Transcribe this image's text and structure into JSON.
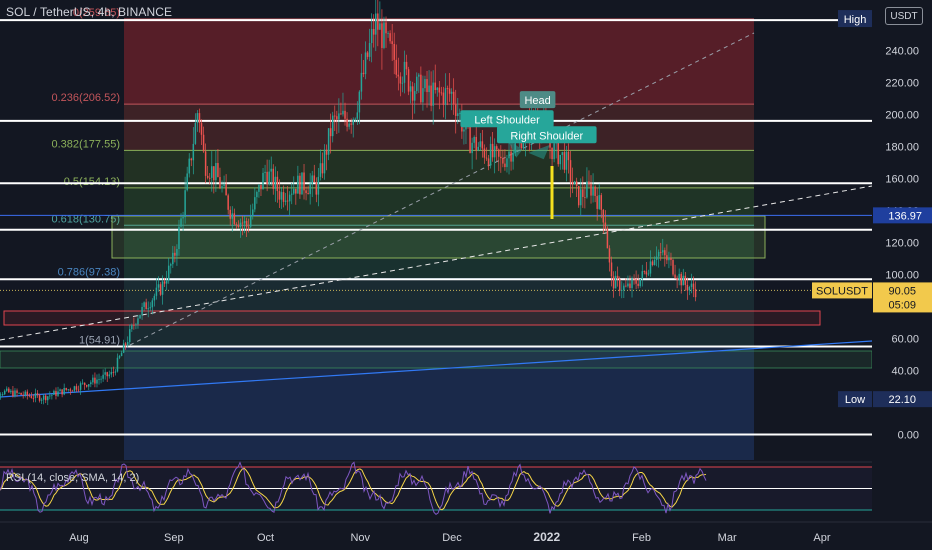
{
  "header": {
    "symbol_line": "SOL / TetherUS, 4h, BINANCE"
  },
  "currency_button": "USDT",
  "rsi": {
    "title": "RSI (14, close, SMA, 14, 2)",
    "price_label": "40.00"
  },
  "colors": {
    "background": "#131722",
    "candle_up": "#26a69a",
    "candle_down": "#ef5350",
    "text": "#d1d4dc",
    "rsi_line": "#7e57c2",
    "rsi_ma": "#f5d547",
    "trend_blue": "#3179f5"
  },
  "chart_data": {
    "type": "candlestick",
    "symbol": "SOL / TetherUS",
    "interval": "4h",
    "exchange": "BINANCE",
    "ylim": [
      -12,
      262
    ],
    "price_axis_ticks": [
      "240.00",
      "220.00",
      "200.00",
      "180.00",
      "160.00",
      "140.00",
      "120.00",
      "100.00",
      "80.00",
      "60.00",
      "40.00",
      "0.00"
    ],
    "time_axis_ticks": [
      "Aug",
      "Sep",
      "Oct",
      "Nov",
      "Dec",
      "2022",
      "Feb",
      "Mar",
      "Apr"
    ],
    "price_path": [
      [
        "2021-07-01",
        28
      ],
      [
        "2021-07-10",
        26
      ],
      [
        "2021-07-20",
        23
      ],
      [
        "2021-07-28",
        28
      ],
      [
        "2021-08-05",
        33
      ],
      [
        "2021-08-12",
        38
      ],
      [
        "2021-08-17",
        60
      ],
      [
        "2021-08-20",
        74
      ],
      [
        "2021-08-28",
        92
      ],
      [
        "2021-09-01",
        110
      ],
      [
        "2021-09-04",
        140
      ],
      [
        "2021-09-09",
        205
      ],
      [
        "2021-09-11",
        170
      ],
      [
        "2021-09-15",
        162
      ],
      [
        "2021-09-20",
        138
      ],
      [
        "2021-09-25",
        130
      ],
      [
        "2021-10-01",
        165
      ],
      [
        "2021-10-06",
        150
      ],
      [
        "2021-10-12",
        157
      ],
      [
        "2021-10-18",
        155
      ],
      [
        "2021-10-23",
        195
      ],
      [
        "2021-10-30",
        200
      ],
      [
        "2021-11-06",
        258
      ],
      [
        "2021-11-12",
        235
      ],
      [
        "2021-11-18",
        218
      ],
      [
        "2021-11-25",
        212
      ],
      [
        "2021-12-01",
        213
      ],
      [
        "2021-12-06",
        185
      ],
      [
        "2021-12-11",
        178
      ],
      [
        "2021-12-17",
        170
      ],
      [
        "2021-12-21",
        180
      ],
      [
        "2021-12-25",
        190
      ],
      [
        "2021-12-29",
        200
      ],
      [
        "2022-01-02",
        180
      ],
      [
        "2022-01-07",
        172
      ],
      [
        "2022-01-11",
        148
      ],
      [
        "2022-01-16",
        155
      ],
      [
        "2022-01-20",
        135
      ],
      [
        "2022-01-22",
        96
      ],
      [
        "2022-01-27",
        91
      ],
      [
        "2022-02-01",
        98
      ],
      [
        "2022-02-06",
        115
      ],
      [
        "2022-02-10",
        108
      ],
      [
        "2022-02-15",
        94
      ],
      [
        "2022-02-19",
        90.05
      ]
    ],
    "high_label": "High",
    "low_label": "Low",
    "low_value": "22.10",
    "current_price_label": "SOLUSDT",
    "current_price": "90.05",
    "countdown": "05:09",
    "blue_level_value": "136.97",
    "fibonacci": [
      {
        "ratio": 0,
        "price": 259.65,
        "label": "0(259.65)"
      },
      {
        "ratio": 0.236,
        "price": 206.52,
        "label": "0.236(206.52)"
      },
      {
        "ratio": 0.382,
        "price": 177.55,
        "label": "0.382(177.55)"
      },
      {
        "ratio": 0.5,
        "price": 154.13,
        "label": "0.5(154.13)"
      },
      {
        "ratio": 0.618,
        "price": 130.75,
        "label": "0.618(130.75)"
      },
      {
        "ratio": 0.786,
        "price": 97.38,
        "label": "0.786(97.38)"
      },
      {
        "ratio": 1,
        "price": 54.91,
        "label": "1(54.91)"
      }
    ],
    "horizontal_levels": [
      259,
      196,
      157,
      128,
      97,
      55,
      0
    ],
    "annotations": [
      {
        "text": "Head",
        "date": "2021-12-29",
        "price": 209
      },
      {
        "text": "Left Shoulder",
        "date": "2021-12-19",
        "price": 197
      },
      {
        "text": "Right Shoulder",
        "date": "2022-01-01",
        "price": 187
      }
    ],
    "rsi_ylim": [
      0,
      100
    ],
    "rsi_levels": [
      70,
      50,
      30
    ]
  }
}
